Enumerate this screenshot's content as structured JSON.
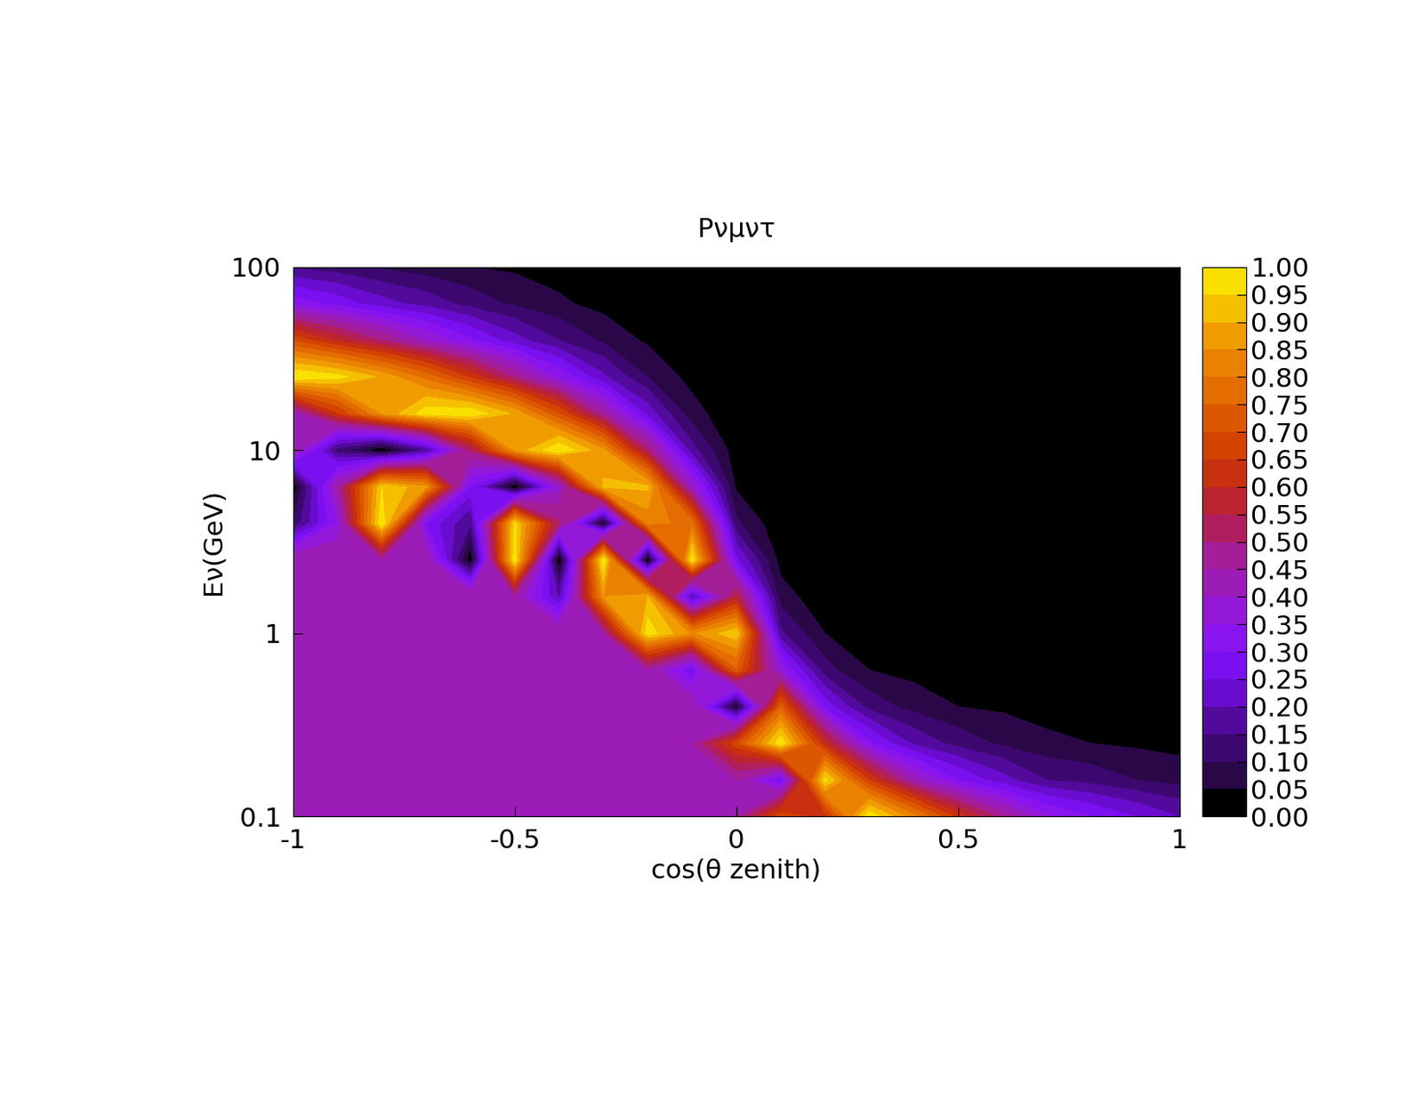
{
  "chart_data": {
    "type": "heatmap",
    "title": "Pνμντ",
    "x_label": "cos(θ zenith)",
    "y_label": "Eν(GeV)",
    "log": "y",
    "xlim": [
      -1,
      1
    ],
    "ylim": [
      0.1,
      100
    ],
    "xticks": [
      -1,
      -0.5,
      0,
      0.5,
      1
    ],
    "yticks": [
      0.1,
      1,
      10,
      100
    ],
    "x": [
      -1,
      -0.9,
      -0.8,
      -0.7,
      -0.6,
      -0.5,
      -0.4,
      -0.3,
      -0.2,
      -0.1,
      0,
      0.1,
      0.2,
      0.3,
      0.4,
      0.5,
      0.6,
      0.7,
      0.8,
      0.9,
      1
    ],
    "y": [
      0.1,
      0.158,
      0.251,
      0.398,
      0.631,
      1,
      1.585,
      2.512,
      3.981,
      6.31,
      10,
      15.85,
      25.12,
      39.81,
      63.1,
      100
    ],
    "values": [
      [
        0.45,
        0.45,
        0.45,
        0.45,
        0.45,
        0.45,
        0.45,
        0.45,
        0.45,
        0.45,
        0.45,
        0.69,
        0.62,
        0.99,
        0.82,
        0.63,
        0.48,
        0.36,
        0.3,
        0.25,
        0.2
      ],
      [
        0.45,
        0.45,
        0.45,
        0.45,
        0.45,
        0.45,
        0.45,
        0.45,
        0.45,
        0.45,
        0.45,
        0.26,
        0.97,
        0.65,
        0.43,
        0.3,
        0.22,
        0.15,
        0.13,
        0.1,
        0.08
      ],
      [
        0.45,
        0.45,
        0.45,
        0.45,
        0.45,
        0.45,
        0.45,
        0.45,
        0.45,
        0.45,
        0.68,
        0.99,
        0.6,
        0.31,
        0.19,
        0.13,
        0.09,
        0.06,
        0.05,
        0.04,
        0.03
      ],
      [
        0.45,
        0.45,
        0.45,
        0.45,
        0.45,
        0.45,
        0.45,
        0.45,
        0.45,
        0.45,
        0.04,
        0.74,
        0.28,
        0.13,
        0.08,
        0.05,
        0.04,
        0.03,
        0.02,
        0.02,
        0.01
      ],
      [
        0.45,
        0.45,
        0.45,
        0.45,
        0.45,
        0.45,
        0.45,
        0.45,
        0.45,
        0.26,
        0.74,
        0.37,
        0.12,
        0.05,
        0.03,
        0.02,
        0.01,
        0.01,
        0.01,
        0.01,
        0.01
      ],
      [
        0.45,
        0.45,
        0.45,
        0.45,
        0.45,
        0.45,
        0.45,
        0.45,
        0.98,
        0.84,
        0.94,
        0.16,
        0.05,
        0.02,
        0.01,
        0.01,
        0.01,
        0,
        0,
        0,
        0
      ],
      [
        0.45,
        0.45,
        0.45,
        0.45,
        0.45,
        0.45,
        0.19,
        0.85,
        0.9,
        0.17,
        0.56,
        0.07,
        0.02,
        0.01,
        0.01,
        0,
        0,
        0,
        0,
        0,
        0
      ],
      [
        0.45,
        0.45,
        0.45,
        0.45,
        0.01,
        0.99,
        0,
        1.0,
        0,
        0.98,
        0.26,
        0.03,
        0.01,
        0,
        0,
        0,
        0,
        0,
        0,
        0,
        0
      ],
      [
        0.11,
        0.35,
        1.0,
        0.29,
        0.15,
        0.96,
        0.51,
        0.03,
        0.82,
        0.78,
        0.11,
        0.01,
        0,
        0,
        0,
        0,
        0,
        0,
        0,
        0,
        0
      ],
      [
        0.01,
        0.45,
        0.95,
        0.86,
        0.29,
        0,
        0.38,
        0.91,
        0.91,
        0.4,
        0.04,
        0,
        0,
        0,
        0,
        0,
        0,
        0,
        0,
        0,
        0
      ],
      [
        0.46,
        0.12,
        0,
        0.16,
        0.51,
        0.86,
        1.0,
        0.86,
        0.51,
        0.17,
        0.02,
        0,
        0,
        0,
        0,
        0,
        0,
        0,
        0,
        0,
        0
      ],
      [
        0.4,
        0.64,
        0.85,
        0.98,
        0.99,
        0.89,
        0.7,
        0.46,
        0.23,
        0.07,
        0.01,
        0,
        0,
        0,
        0,
        0,
        0,
        0,
        0,
        0,
        0
      ],
      [
        1.0,
        0.97,
        0.89,
        0.78,
        0.64,
        0.49,
        0.34,
        0.21,
        0.1,
        0.03,
        0,
        0,
        0,
        0,
        0,
        0,
        0,
        0,
        0,
        0,
        0
      ],
      [
        0.69,
        0.59,
        0.5,
        0.4,
        0.31,
        0.22,
        0.15,
        0.09,
        0.04,
        0.01,
        0,
        0,
        0,
        0,
        0,
        0,
        0,
        0,
        0,
        0,
        0
      ],
      [
        0.33,
        0.28,
        0.22,
        0.18,
        0.13,
        0.09,
        0.06,
        0.03,
        0.02,
        0,
        0,
        0,
        0,
        0,
        0,
        0,
        0,
        0,
        0,
        0,
        0
      ],
      [
        0.14,
        0.12,
        0.09,
        0.07,
        0.05,
        0.04,
        0.02,
        0.01,
        0.01,
        0,
        0,
        0,
        0,
        0,
        0,
        0,
        0,
        0,
        0,
        0,
        0
      ]
    ],
    "colorbar_range": [
      0,
      1
    ],
    "colorbar_ticks": [
      {
        "value": 0,
        "label": "0.00"
      },
      {
        "value": 0.05,
        "label": "0.05"
      },
      {
        "value": 0.1,
        "label": "0.10"
      },
      {
        "value": 0.15,
        "label": "0.15"
      },
      {
        "value": 0.2,
        "label": "0.20"
      },
      {
        "value": 0.25,
        "label": "0.25"
      },
      {
        "value": 0.3,
        "label": "0.30"
      },
      {
        "value": 0.35,
        "label": "0.35"
      },
      {
        "value": 0.4,
        "label": "0.40"
      },
      {
        "value": 0.45,
        "label": "0.45"
      },
      {
        "value": 0.5,
        "label": "0.50"
      },
      {
        "value": 0.55,
        "label": "0.55"
      },
      {
        "value": 0.6,
        "label": "0.60"
      },
      {
        "value": 0.65,
        "label": "0.65"
      },
      {
        "value": 0.7,
        "label": "0.70"
      },
      {
        "value": 0.75,
        "label": "0.75"
      },
      {
        "value": 0.8,
        "label": "0.80"
      },
      {
        "value": 0.85,
        "label": "0.85"
      },
      {
        "value": 0.9,
        "label": "0.90"
      },
      {
        "value": 0.95,
        "label": "0.95"
      },
      {
        "value": 1,
        "label": "1.00"
      }
    ]
  }
}
